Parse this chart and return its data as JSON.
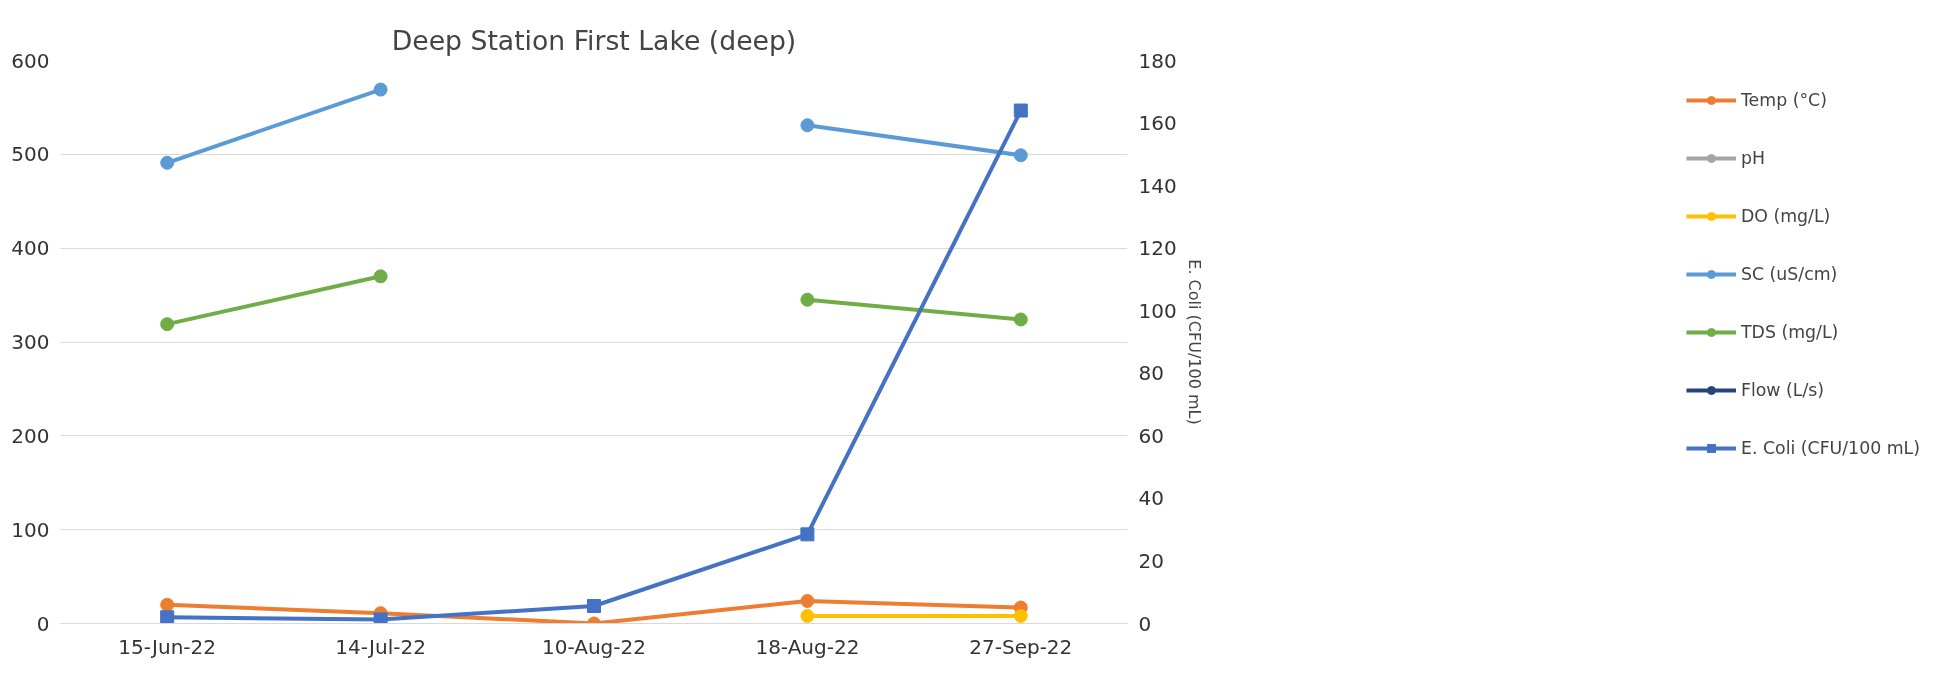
{
  "chart_data": {
    "type": "line",
    "title": "Deep Station First Lake (deep)",
    "y2label": "E. Coli (CFU/100 mL)",
    "categories": [
      "15-Jun-22",
      "14-Jul-22",
      "10-Aug-22",
      "18-Aug-22",
      "27-Sep-22"
    ],
    "series": [
      {
        "name": "Temp (°C)",
        "color": "#ed7d31",
        "marker": "circle",
        "values": [
          20,
          11,
          0,
          24,
          17
        ]
      },
      {
        "name": "pH",
        "color": "#a5a5a5",
        "marker": "circle",
        "values": [
          null,
          null,
          null,
          null,
          null
        ]
      },
      {
        "name": "DO (mg/L)",
        "color": "#ffc000",
        "marker": "circle",
        "values": [
          null,
          null,
          null,
          8,
          8
        ]
      },
      {
        "name": "SC (uS/cm)",
        "color": "#5b9bd5",
        "marker": "circle",
        "values": [
          491,
          569,
          null,
          531,
          499
        ]
      },
      {
        "name": "TDS (mg/L)",
        "color": "#70ad47",
        "marker": "circle",
        "values": [
          319,
          370,
          null,
          345,
          324
        ]
      },
      {
        "name": "Flow (L/s)",
        "color": "#264478",
        "marker": "circle",
        "values": [
          null,
          null,
          null,
          null,
          null
        ]
      },
      {
        "name": "E. Coli (CFU/100 mL)",
        "color": "#4472c4",
        "marker": "square",
        "axis": "y2",
        "values": [
          2,
          1.3,
          5.6,
          28.5,
          164
        ]
      }
    ],
    "ylim": [
      0,
      600
    ],
    "yticks": [
      0,
      100,
      200,
      300,
      400,
      500,
      600
    ],
    "y2lim": [
      0,
      180
    ],
    "y2ticks": [
      0,
      20,
      40,
      60,
      80,
      100,
      120,
      140,
      160,
      180
    ],
    "grid": "y",
    "legend": "right"
  }
}
